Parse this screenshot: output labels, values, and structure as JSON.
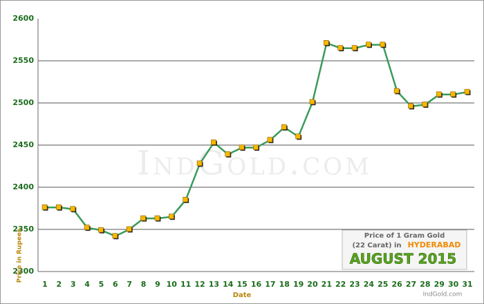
{
  "chart_data": {
    "type": "line",
    "xlabel": "Date",
    "ylabel": "Price in Rupees",
    "watermark": "IndGold.com",
    "legend_box": {
      "line1": "Price of 1 Gram Gold",
      "line2": "(22 Carat) in",
      "city": "HYDERABAD",
      "month": "AUGUST 2015",
      "source": "IndGold.com"
    },
    "categories": [
      "1",
      "2",
      "3",
      "4",
      "5",
      "6",
      "7",
      "8",
      "9",
      "10",
      "11",
      "12",
      "13",
      "14",
      "15",
      "16",
      "17",
      "18",
      "19",
      "20",
      "21",
      "22",
      "23",
      "24",
      "25",
      "26",
      "27",
      "28",
      "29",
      "30",
      "31"
    ],
    "values": [
      2376,
      2376,
      2374,
      2352,
      2349,
      2342,
      2350,
      2363,
      2363,
      2365,
      2385,
      2428,
      2453,
      2439,
      2447,
      2447,
      2456,
      2471,
      2460,
      2501,
      2571,
      2565,
      2565,
      2569,
      2569,
      2514,
      2496,
      2498,
      2510,
      2510,
      2513
    ],
    "color": "#3a9a5b",
    "marker_color": "#f5b800",
    "ylim": [
      2300,
      2600
    ],
    "yticks": [
      2300,
      2350,
      2400,
      2450,
      2500,
      2550,
      2600
    ],
    "grid": true
  }
}
